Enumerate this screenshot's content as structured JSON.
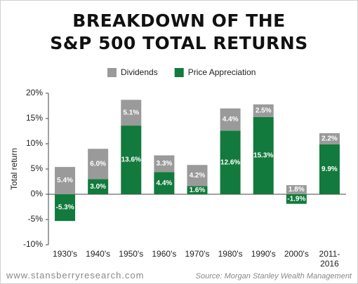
{
  "chart_data": {
    "type": "stacked_bar",
    "title": [
      "BREAKDOWN OF THE",
      "S&P 500 TOTAL RETURNS"
    ],
    "y_label": "Total return",
    "categories": [
      "1930's",
      "1940's",
      "1950's",
      "1960's",
      "1970's",
      "1980's",
      "1990's",
      "2000's",
      "2011-2016"
    ],
    "series": [
      {
        "name": "Dividends",
        "color": "#9a9a9a",
        "values": [
          5.4,
          6.0,
          5.1,
          3.3,
          4.2,
          4.4,
          2.5,
          1.8,
          2.2
        ],
        "value_labels": [
          "5.4%",
          "6.0%",
          "5.1%",
          "3.3%",
          "4.2%",
          "4.4%",
          "2.5%",
          "1.8%",
          "2.2%"
        ]
      },
      {
        "name": "Price Appreciation",
        "color": "#127a3c",
        "values": [
          -5.3,
          3.0,
          13.6,
          4.4,
          1.6,
          12.6,
          15.3,
          -1.9,
          9.9
        ],
        "value_labels": [
          "-5.3%",
          "3.0%",
          "13.6%",
          "4.4%",
          "1.6%",
          "12.6%",
          "15.3%",
          "-1.9%",
          "9.9%"
        ]
      }
    ],
    "ylim": [
      -10,
      20
    ],
    "yticks": [
      {
        "value": -10,
        "label": "-10%"
      },
      {
        "value": -5,
        "label": "-5%"
      },
      {
        "value": 0,
        "label": "0%"
      },
      {
        "value": 5,
        "label": "5%"
      },
      {
        "value": 10,
        "label": "10%"
      },
      {
        "value": 15,
        "label": "15%"
      },
      {
        "value": 20,
        "label": "20%"
      }
    ],
    "grid": false,
    "website": "www.stansberryresearch.com",
    "source": "Source: Morgan Stanley Wealth Management"
  }
}
